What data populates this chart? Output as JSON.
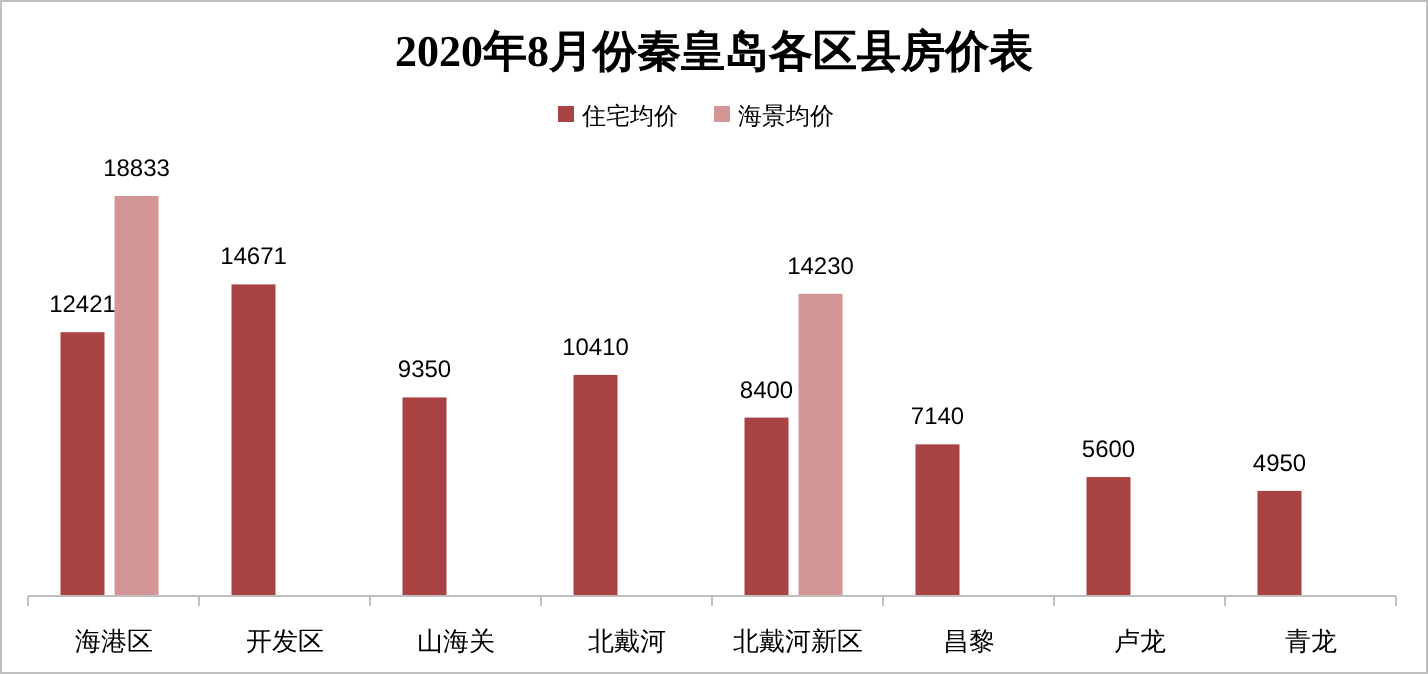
{
  "chart_data": {
    "type": "bar",
    "title": "2020年8月份秦皇岛各区县房价表",
    "categories": [
      "海港区",
      "开发区",
      "山海关",
      "北戴河",
      "北戴河新区",
      "昌黎",
      "卢龙",
      "青龙"
    ],
    "series": [
      {
        "name": "住宅均价",
        "color": "#a94343",
        "values": [
          12421,
          14671,
          9350,
          10410,
          8400,
          7140,
          5600,
          4950
        ]
      },
      {
        "name": "海景均价",
        "color": "#d39595",
        "values": [
          18833,
          null,
          null,
          null,
          14230,
          null,
          null,
          null
        ]
      }
    ],
    "data_labels": true,
    "legend": "top",
    "grid": false
  }
}
